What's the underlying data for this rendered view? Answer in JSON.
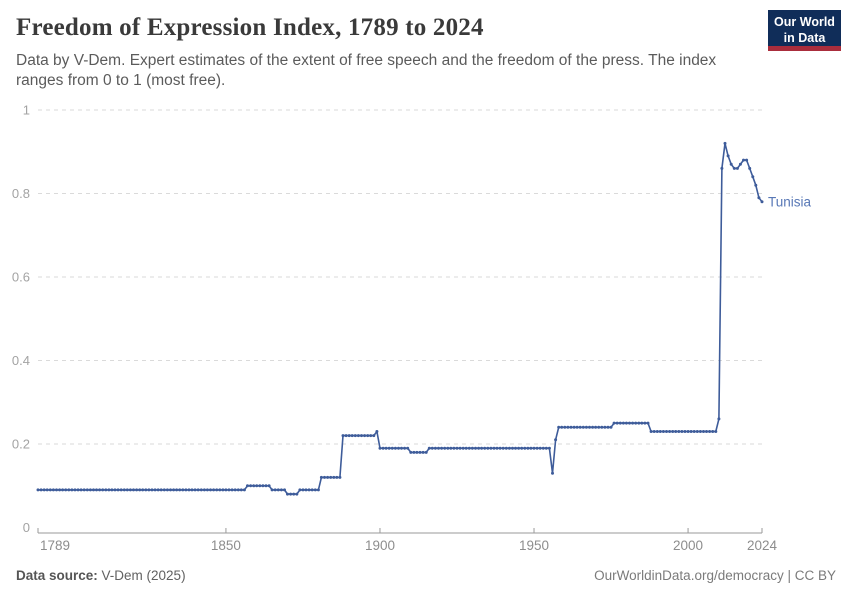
{
  "header": {
    "title": "Freedom of Expression Index, 1789 to 2024",
    "subtitle": "Data by V-Dem. Expert estimates of the extent of free speech and the freedom of the press. The index ranges from 0 to 1 (most free).",
    "logo": {
      "line1": "Our World",
      "line2": "in Data",
      "bg_color": "#102d59",
      "accent_color": "#aa2d3c"
    }
  },
  "chart_data": {
    "type": "line",
    "title": "Freedom of Expression Index, 1789 to 2024",
    "entity": "Tunisia",
    "xlabel": "",
    "ylabel": "",
    "xlim": [
      1789,
      2024
    ],
    "ylim": [
      0,
      1
    ],
    "x_ticks": [
      1789,
      1850,
      1900,
      1950,
      2000,
      2024
    ],
    "y_ticks": [
      0,
      0.2,
      0.4,
      0.6,
      0.8,
      1
    ],
    "grid": "horizontal-dashed",
    "legend": "end-of-line-label",
    "line_color": "#3e5c9a",
    "label_color": "#5878b6",
    "marker": "dot-every-year",
    "series": [
      {
        "name": "Tunisia",
        "segments_note": "step data as [startYear, endYear, value]; one data point per year",
        "segments": [
          [
            1789,
            1856,
            0.09
          ],
          [
            1857,
            1864,
            0.1
          ],
          [
            1865,
            1869,
            0.09
          ],
          [
            1870,
            1873,
            0.08
          ],
          [
            1874,
            1880,
            0.09
          ],
          [
            1881,
            1887,
            0.12
          ],
          [
            1888,
            1898,
            0.22
          ],
          [
            1899,
            1899,
            0.23
          ],
          [
            1900,
            1909,
            0.19
          ],
          [
            1910,
            1915,
            0.18
          ],
          [
            1916,
            1955,
            0.19
          ],
          [
            1956,
            1956,
            0.13
          ],
          [
            1957,
            1957,
            0.21
          ],
          [
            1958,
            1975,
            0.24
          ],
          [
            1976,
            1987,
            0.25
          ],
          [
            1988,
            2009,
            0.23
          ],
          [
            2010,
            2010,
            0.26
          ],
          [
            2011,
            2011,
            0.86
          ],
          [
            2012,
            2012,
            0.92
          ],
          [
            2013,
            2013,
            0.89
          ],
          [
            2014,
            2014,
            0.87
          ],
          [
            2015,
            2016,
            0.86
          ],
          [
            2017,
            2017,
            0.87
          ],
          [
            2018,
            2019,
            0.88
          ],
          [
            2020,
            2020,
            0.86
          ],
          [
            2021,
            2021,
            0.84
          ],
          [
            2022,
            2022,
            0.82
          ],
          [
            2023,
            2023,
            0.79
          ],
          [
            2024,
            2024,
            0.78
          ]
        ]
      }
    ]
  },
  "footer": {
    "source_label": "Data source:",
    "source_value": " V-Dem (2025)",
    "credit": "OurWorldinData.org/democracy | CC BY"
  }
}
